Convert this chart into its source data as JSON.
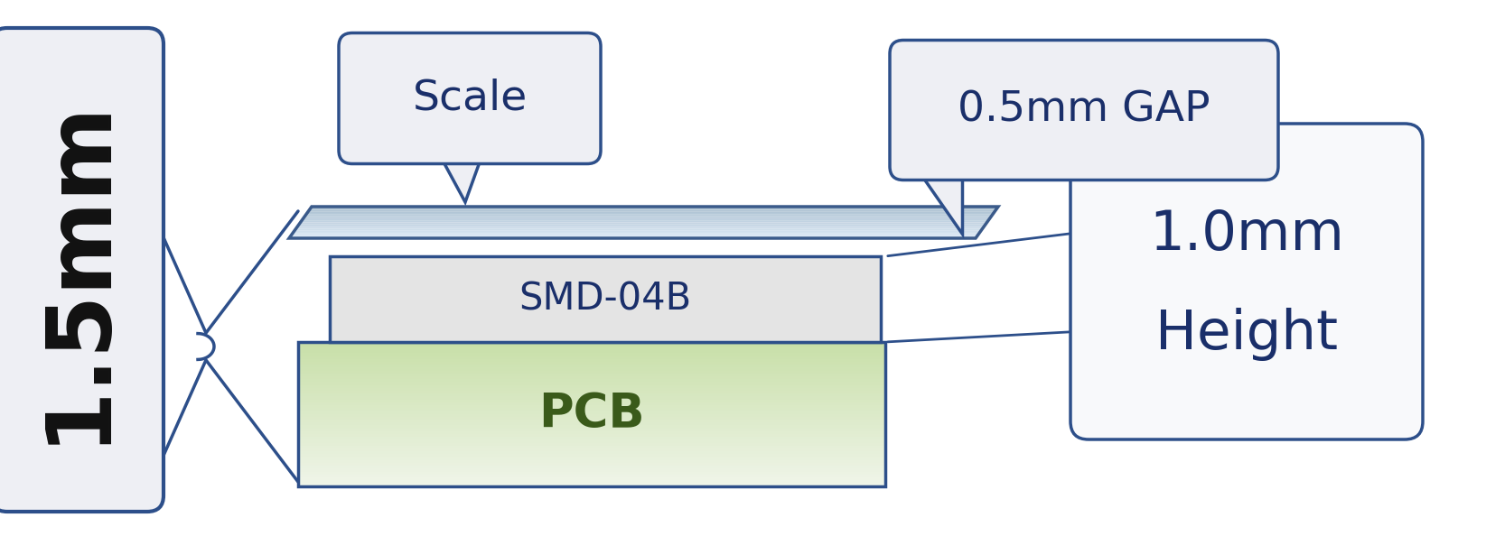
{
  "bg_color": "#ffffff",
  "border_blue": "#2d4f8a",
  "text_dark_blue": "#1a2f6a",
  "text_black": "#111111",
  "text_pcb_green": "#3a5a1a",
  "smd_fill": "#e4e4e4",
  "pcb_fill_top": "#c8dfa8",
  "pcb_fill_bot": "#f0f5ea",
  "scale_fill_top": "#dce8f5",
  "scale_fill_bot": "#a8bece",
  "scale_border": "#3a5a8a",
  "label_bg": "#eeeff4",
  "label_bg_white": "#f8f9fb",
  "title_text": "1.5mm",
  "scale_label": "Scale",
  "gap_label": "0.5mm GAP",
  "smd_label": "SMD-04B",
  "pcb_label": "PCB",
  "height_label1": "1.0mm",
  "height_label2": "Height"
}
